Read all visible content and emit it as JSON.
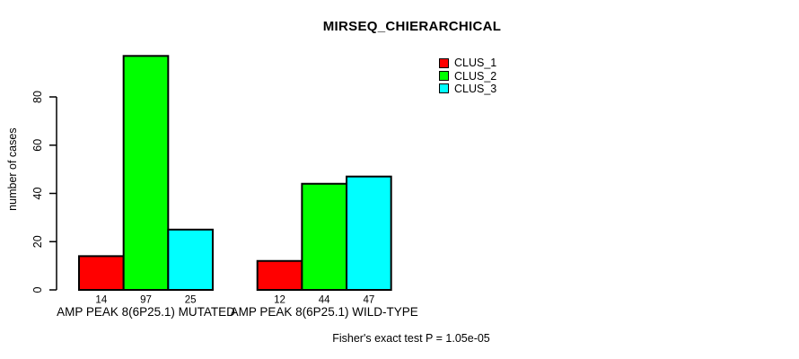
{
  "page": {
    "background_color": "#FFFFFF",
    "text_color": "#000000",
    "axis_color": "#000000"
  },
  "chart_data": {
    "type": "bar",
    "title": "MIRSEQ_CHIERARCHICAL",
    "xlabel": "",
    "ylabel": "number of cases",
    "ylim": [
      0,
      100
    ],
    "yticks": [
      0,
      20,
      40,
      60,
      80
    ],
    "grid": false,
    "legend_position": "top-right",
    "categories": [
      "AMP PEAK  8(6P25.1) MUTATED",
      "AMP PEAK  8(6P25.1) WILD-TYPE"
    ],
    "series": [
      {
        "name": "CLUS_1",
        "color": "#FF0000",
        "values": [
          14,
          12
        ]
      },
      {
        "name": "CLUS_2",
        "color": "#00FF00",
        "values": [
          97,
          44
        ]
      },
      {
        "name": "CLUS_3",
        "color": "#00FFFF",
        "values": [
          25,
          47
        ]
      }
    ],
    "bar_value_labels": [
      [
        "14",
        "97",
        "25"
      ],
      [
        "12",
        "44",
        "47"
      ]
    ],
    "annotation": "Fisher's exact test P = 1.05e-05"
  }
}
